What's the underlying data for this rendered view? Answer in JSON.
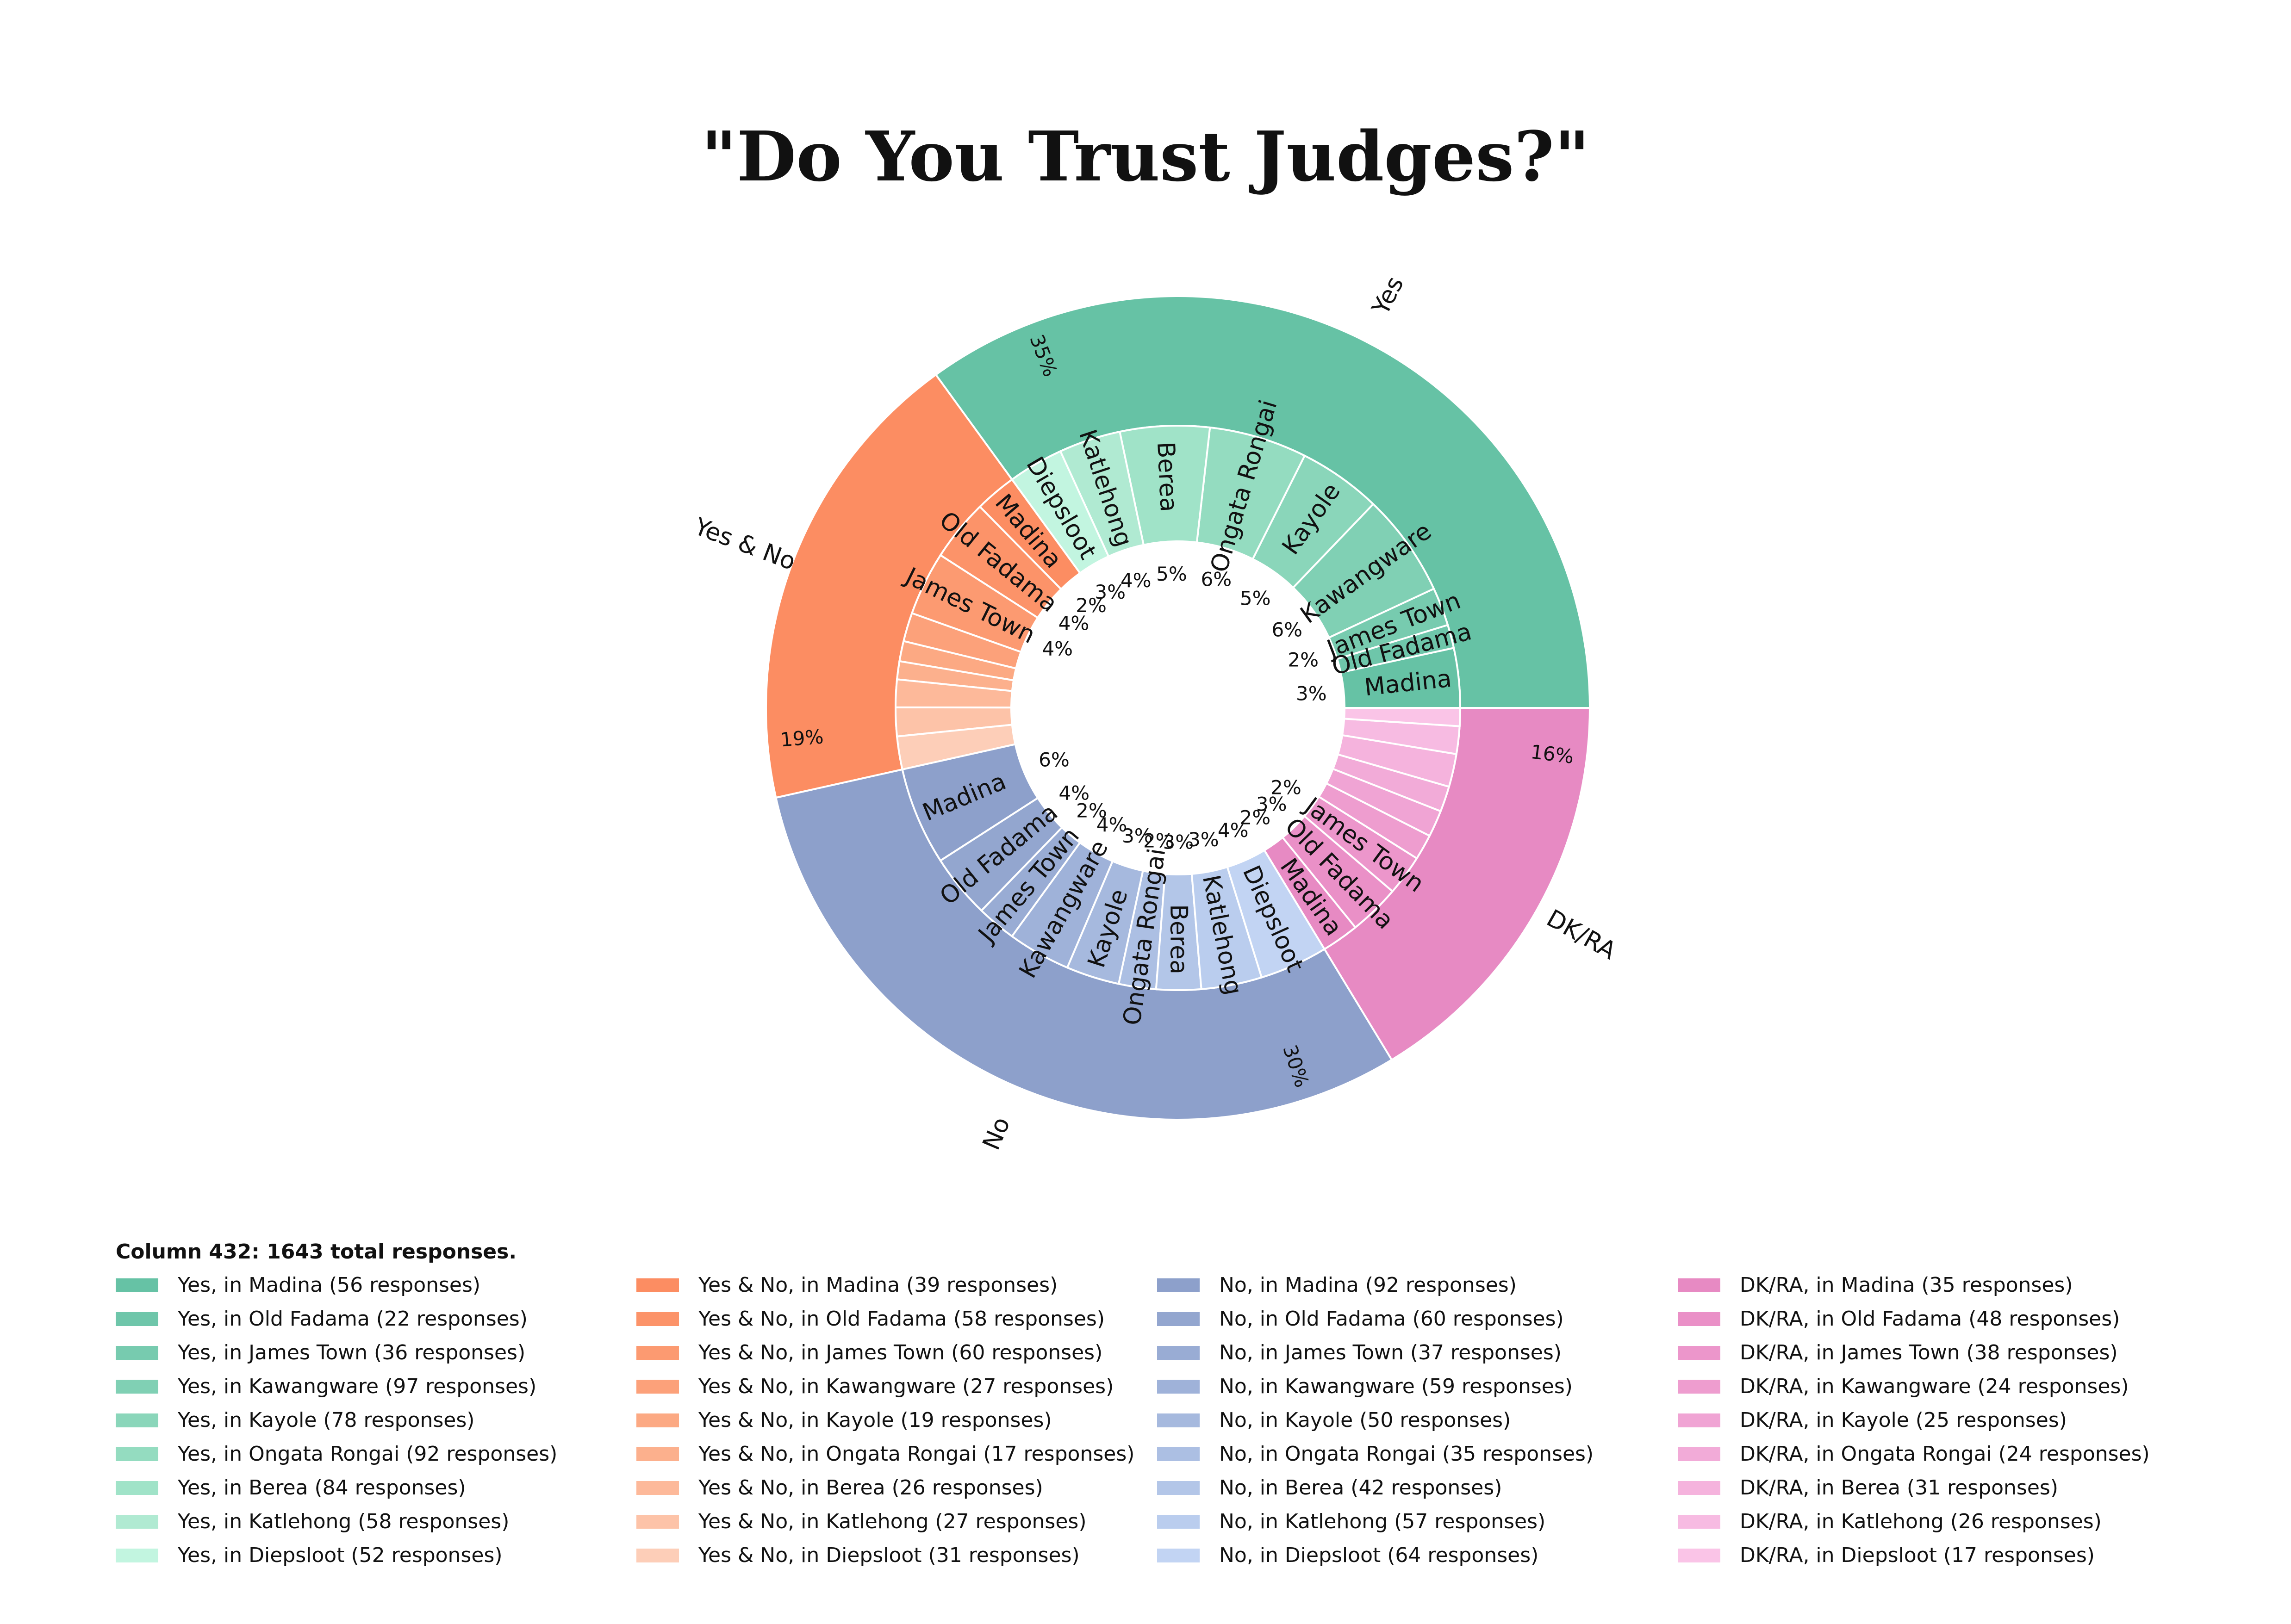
{
  "chart_data": {
    "type": "sunburst",
    "title": "\"Do You Trust Judges?\"",
    "legend_title": "Column 432: 1643 total responses.",
    "legend_placement": "bottom",
    "outer": [
      {
        "name": "Yes",
        "percent_label": "35%",
        "color": "#66c2a5"
      },
      {
        "name": "Yes & No",
        "percent_label": "19%",
        "color": "#fc8d62"
      },
      {
        "name": "No",
        "percent_label": "30%",
        "color": "#8da0cb"
      },
      {
        "name": "DK/RA",
        "percent_label": "16%",
        "color": "#e78ac3"
      }
    ],
    "inner": [
      {
        "parent": 0,
        "name": "Madina",
        "value": 56,
        "pct": "3%",
        "color": "#66c2a5",
        "legend": "Yes, in Madina (56 responses)"
      },
      {
        "parent": 0,
        "name": "Old Fadama",
        "value": 22,
        "pct": "",
        "color": "#6ec6aa",
        "legend": "Yes, in Old Fadama (22 responses)"
      },
      {
        "parent": 0,
        "name": "James Town",
        "value": 36,
        "pct": "2%",
        "color": "#77cbaf",
        "legend": "Yes, in James Town (36 responses)"
      },
      {
        "parent": 0,
        "name": "Kawangware",
        "value": 97,
        "pct": "6%",
        "color": "#80d0b4",
        "legend": "Yes, in Kawangware (97 responses)"
      },
      {
        "parent": 0,
        "name": "Kayole",
        "value": 78,
        "pct": "5%",
        "color": "#8ad6ba",
        "legend": "Yes, in Kayole (78 responses)"
      },
      {
        "parent": 0,
        "name": "Ongata Rongai",
        "value": 92,
        "pct": "6%",
        "color": "#94dcc0",
        "legend": "Yes, in Ongata Rongai (92 responses)"
      },
      {
        "parent": 0,
        "name": "Berea",
        "value": 84,
        "pct": "5%",
        "color": "#a0e3c8",
        "legend": "Yes, in Berea (84 responses)"
      },
      {
        "parent": 0,
        "name": "Katlehong",
        "value": 58,
        "pct": "4%",
        "color": "#b0ead2",
        "legend": "Yes, in Katlehong (58 responses)"
      },
      {
        "parent": 0,
        "name": "Diepsloot",
        "value": 52,
        "pct": "3%",
        "color": "#c2f5e0",
        "legend": "Yes, in Diepsloot (52 responses)"
      },
      {
        "parent": 1,
        "name": "Madina",
        "value": 39,
        "pct": "2%",
        "color": "#fc8d62",
        "legend": "Yes & No, in Madina (39 responses)"
      },
      {
        "parent": 1,
        "name": "Old Fadama",
        "value": 58,
        "pct": "4%",
        "color": "#fc9369",
        "legend": "Yes & No, in Old Fadama (58 responses)"
      },
      {
        "parent": 1,
        "name": "James Town",
        "value": 60,
        "pct": "4%",
        "color": "#fc9a71",
        "legend": "Yes & No, in James Town (60 responses)"
      },
      {
        "parent": 1,
        "name": "",
        "value": 27,
        "pct": "",
        "color": "#fca17a",
        "legend": "Yes & No, in Kawangware (27 responses)"
      },
      {
        "parent": 1,
        "name": "",
        "value": 19,
        "pct": "",
        "color": "#fca983",
        "legend": "Yes & No, in Kayole (19 responses)"
      },
      {
        "parent": 1,
        "name": "",
        "value": 17,
        "pct": "",
        "color": "#fcb08d",
        "legend": "Yes & No, in Ongata Rongai (17 responses)"
      },
      {
        "parent": 1,
        "name": "",
        "value": 26,
        "pct": "",
        "color": "#fdb99a",
        "legend": "Yes & No, in Berea (26 responses)"
      },
      {
        "parent": 1,
        "name": "",
        "value": 27,
        "pct": "",
        "color": "#fdc3a8",
        "legend": "Yes & No, in Katlehong (27 responses)"
      },
      {
        "parent": 1,
        "name": "",
        "value": 31,
        "pct": "",
        "color": "#fdceb8",
        "legend": "Yes & No, in Diepsloot (31 responses)"
      },
      {
        "parent": 2,
        "name": "Madina",
        "value": 92,
        "pct": "6%",
        "color": "#8da0cb",
        "legend": "No, in Madina (92 responses)"
      },
      {
        "parent": 2,
        "name": "Old Fadama",
        "value": 60,
        "pct": "4%",
        "color": "#93a6cf",
        "legend": "No, in Old Fadama (60 responses)"
      },
      {
        "parent": 2,
        "name": "James Town",
        "value": 37,
        "pct": "2%",
        "color": "#99acd4",
        "legend": "No, in James Town (37 responses)"
      },
      {
        "parent": 2,
        "name": "Kawangware",
        "value": 59,
        "pct": "4%",
        "color": "#9fb2d9",
        "legend": "No, in Kawangware (59 responses)"
      },
      {
        "parent": 2,
        "name": "Kayole",
        "value": 50,
        "pct": "3%",
        "color": "#a6b9de",
        "legend": "No, in Kayole (50 responses)"
      },
      {
        "parent": 2,
        "name": "Ongata Rongai",
        "value": 35,
        "pct": "2%",
        "color": "#acbfe3",
        "legend": "No, in Ongata Rongai (35 responses)"
      },
      {
        "parent": 2,
        "name": "Berea",
        "value": 42,
        "pct": "3%",
        "color": "#b3c6e8",
        "legend": "No, in Berea (42 responses)"
      },
      {
        "parent": 2,
        "name": "Katlehong",
        "value": 57,
        "pct": "3%",
        "color": "#bacdee",
        "legend": "No, in Katlehong (57 responses)"
      },
      {
        "parent": 2,
        "name": "Diepsloot",
        "value": 64,
        "pct": "4%",
        "color": "#c2d4f3",
        "legend": "No, in Diepsloot (64 responses)"
      },
      {
        "parent": 3,
        "name": "Madina",
        "value": 35,
        "pct": "2%",
        "color": "#e78ac3",
        "legend": "DK/RA, in Madina (35 responses)"
      },
      {
        "parent": 3,
        "name": "Old Fadama",
        "value": 48,
        "pct": "3%",
        "color": "#ea90c7",
        "legend": "DK/RA, in Old Fadama (48 responses)"
      },
      {
        "parent": 3,
        "name": "James Town",
        "value": 38,
        "pct": "2%",
        "color": "#ec96cb",
        "legend": "DK/RA, in James Town (38 responses)"
      },
      {
        "parent": 3,
        "name": "",
        "value": 24,
        "pct": "",
        "color": "#ee9dcf",
        "legend": "DK/RA, in Kawangware (24 responses)"
      },
      {
        "parent": 3,
        "name": "",
        "value": 25,
        "pct": "",
        "color": "#f0a4d4",
        "legend": "DK/RA, in Kayole (25 responses)"
      },
      {
        "parent": 3,
        "name": "",
        "value": 24,
        "pct": "",
        "color": "#f2abd8",
        "legend": "DK/RA, in Ongata Rongai (24 responses)"
      },
      {
        "parent": 3,
        "name": "",
        "value": 31,
        "pct": "",
        "color": "#f5b3dd",
        "legend": "DK/RA, in Berea (31 responses)"
      },
      {
        "parent": 3,
        "name": "",
        "value": 26,
        "pct": "",
        "color": "#f7bbe2",
        "legend": "DK/RA, in Katlehong (26 responses)"
      },
      {
        "parent": 3,
        "name": "",
        "value": 17,
        "pct": "",
        "color": "#fac4e7",
        "legend": "DK/RA, in Diepsloot (17 responses)"
      }
    ]
  }
}
